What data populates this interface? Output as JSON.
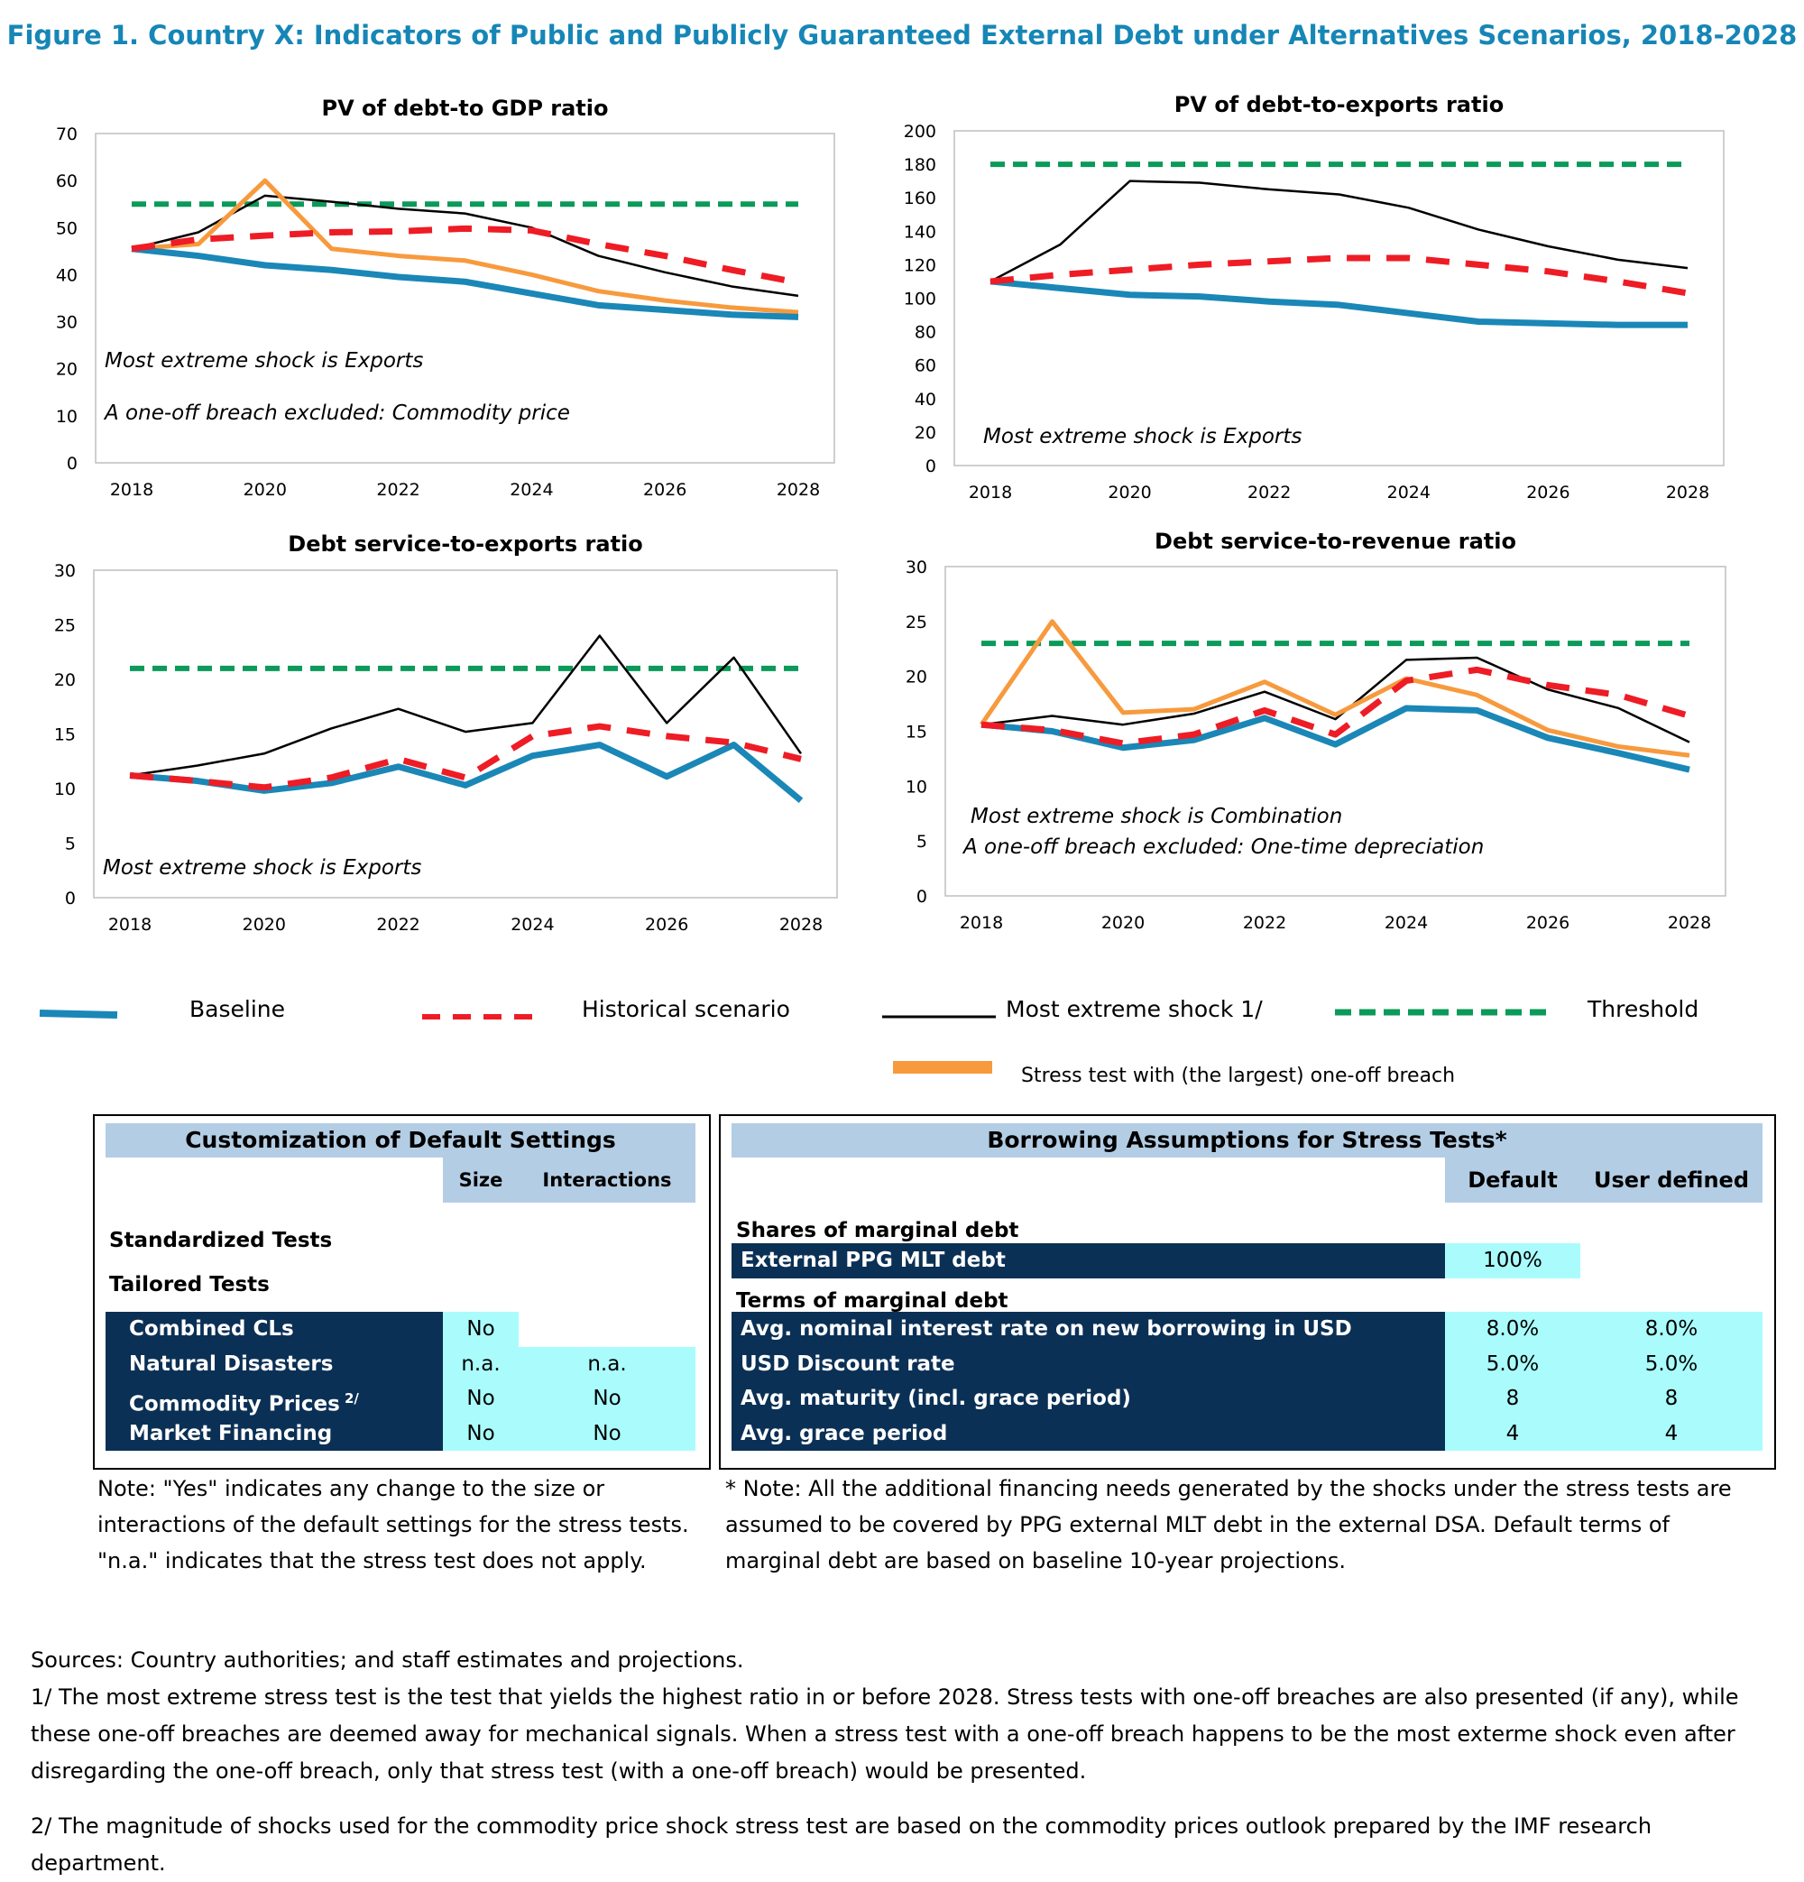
{
  "figure_title": "Figure 1. Country X: Indicators of Public and Publicly Guaranteed External Debt under Alternatives Scenarios, 2018-2028",
  "chart_data": [
    {
      "type": "line",
      "title": "PV of debt-to GDP ratio",
      "x": [
        2018,
        2019,
        2020,
        2021,
        2022,
        2023,
        2024,
        2025,
        2026,
        2027,
        2028
      ],
      "xticks": [
        "2018",
        "2020",
        "2022",
        "2024",
        "2026",
        "2028"
      ],
      "ylim": [
        0,
        70
      ],
      "yticks": [
        0,
        10,
        20,
        30,
        40,
        50,
        60,
        70
      ],
      "series": [
        {
          "name": "Baseline",
          "values": [
            45.5,
            44,
            42,
            41,
            39.5,
            38.5,
            36,
            33.5,
            32.5,
            31.5,
            31
          ]
        },
        {
          "name": "Historical scenario",
          "values": [
            45.5,
            47.5,
            48.3,
            49,
            49.2,
            49.8,
            49.4,
            46.5,
            44,
            41,
            38.3
          ]
        },
        {
          "name": "Most extreme shock 1/",
          "values": [
            45.5,
            49,
            56.8,
            55.5,
            54,
            53,
            50,
            44,
            40.5,
            37.5,
            35.5
          ]
        },
        {
          "name": "Threshold",
          "values": [
            55,
            55,
            55,
            55,
            55,
            55,
            55,
            55,
            55,
            55,
            55
          ]
        },
        {
          "name": "Stress test with (the largest) one-off breach",
          "values": [
            45.5,
            46.5,
            60,
            45.5,
            44,
            43,
            40,
            36.5,
            34.5,
            33,
            32
          ]
        }
      ],
      "annotations": [
        "Most extreme shock is Exports",
        "A one-off breach excluded: Commodity price"
      ]
    },
    {
      "type": "line",
      "title": "PV of debt-to-exports ratio",
      "x": [
        2018,
        2019,
        2020,
        2021,
        2022,
        2023,
        2024,
        2025,
        2026,
        2027,
        2028
      ],
      "xticks": [
        "2018",
        "2020",
        "2022",
        "2024",
        "2026",
        "2028"
      ],
      "ylim": [
        0,
        200
      ],
      "yticks": [
        0,
        20,
        40,
        60,
        80,
        100,
        120,
        140,
        160,
        180,
        200
      ],
      "series": [
        {
          "name": "Baseline",
          "values": [
            110,
            106,
            102,
            101,
            98,
            96,
            91,
            86,
            85,
            84,
            84
          ]
        },
        {
          "name": "Historical scenario",
          "values": [
            110,
            114,
            117,
            120,
            122,
            124,
            124,
            120,
            116,
            110,
            103
          ]
        },
        {
          "name": "Most extreme shock 1/",
          "values": [
            110,
            132,
            170,
            169,
            165,
            162,
            154,
            141,
            131,
            123,
            118
          ]
        },
        {
          "name": "Threshold",
          "values": [
            180,
            180,
            180,
            180,
            180,
            180,
            180,
            180,
            180,
            180,
            180
          ]
        }
      ],
      "annotations": [
        "Most extreme shock is Exports"
      ]
    },
    {
      "type": "line",
      "title": "Debt service-to-exports ratio",
      "x": [
        2018,
        2019,
        2020,
        2021,
        2022,
        2023,
        2024,
        2025,
        2026,
        2027,
        2028
      ],
      "xticks": [
        "2018",
        "2020",
        "2022",
        "2024",
        "2026",
        "2028"
      ],
      "ylim": [
        0,
        30
      ],
      "yticks": [
        0,
        5,
        10,
        15,
        20,
        25,
        30
      ],
      "series": [
        {
          "name": "Baseline",
          "values": [
            11.2,
            10.7,
            9.8,
            10.5,
            12,
            10.3,
            13,
            14,
            11.1,
            14,
            8.9
          ]
        },
        {
          "name": "Historical scenario",
          "values": [
            11.2,
            10.7,
            10.1,
            11,
            12.7,
            11,
            14.8,
            15.7,
            14.8,
            14.2,
            12.7
          ]
        },
        {
          "name": "Most extreme shock 1/",
          "values": [
            11.2,
            12.1,
            13.2,
            15.5,
            17.3,
            15.2,
            16,
            24,
            16,
            22,
            13.2
          ]
        },
        {
          "name": "Threshold",
          "values": [
            21,
            21,
            21,
            21,
            21,
            21,
            21,
            21,
            21,
            21,
            21
          ]
        }
      ],
      "annotations": [
        "Most extreme shock is Exports"
      ]
    },
    {
      "type": "line",
      "title": "Debt service-to-revenue ratio",
      "x": [
        2018,
        2019,
        2020,
        2021,
        2022,
        2023,
        2024,
        2025,
        2026,
        2027,
        2028
      ],
      "xticks": [
        "2018",
        "2020",
        "2022",
        "2024",
        "2026",
        "2028"
      ],
      "ylim": [
        0,
        30
      ],
      "yticks": [
        0,
        5,
        10,
        15,
        20,
        25,
        30
      ],
      "series": [
        {
          "name": "Baseline",
          "values": [
            15.6,
            15,
            13.5,
            14.2,
            16.2,
            13.8,
            17.1,
            16.9,
            14.4,
            13,
            11.5
          ]
        },
        {
          "name": "Historical scenario",
          "values": [
            15.6,
            15.1,
            13.9,
            14.7,
            16.9,
            14.7,
            19.6,
            20.6,
            19.2,
            18.3,
            16.4
          ]
        },
        {
          "name": "Most extreme shock 1/",
          "values": [
            15.6,
            16.4,
            15.6,
            16.6,
            18.6,
            16.1,
            21.5,
            21.7,
            18.8,
            17.1,
            14
          ]
        },
        {
          "name": "Threshold",
          "values": [
            23,
            23,
            23,
            23,
            23,
            23,
            23,
            23,
            23,
            23,
            23
          ]
        },
        {
          "name": "Stress test with (the largest) one-off breach",
          "values": [
            15.6,
            25,
            16.7,
            17,
            19.5,
            16.5,
            19.8,
            18.3,
            15.1,
            13.6,
            12.8
          ]
        }
      ],
      "annotations": [
        "Most extreme shock is Combination",
        "A one-off breach excluded: One-time depreciation"
      ]
    }
  ],
  "colors": {
    "baseline": "#1a87b7",
    "historical": "#ee1c25",
    "extreme": "#000000",
    "threshold": "#0b9a59",
    "oneoff": "#f79a3e",
    "title": "#1686b6",
    "header_bg": "#b3cde4",
    "dark_bg": "#0b3056",
    "cyan_bg": "#aafcfc"
  },
  "legend": {
    "baseline": "Baseline",
    "historical": "Historical scenario",
    "extreme": "Most extreme shock 1/",
    "threshold": "Threshold",
    "oneoff": "Stress test with (the largest) one-off breach"
  },
  "custom_table": {
    "title": "Customization of Default Settings",
    "col_size": "Size",
    "col_interactions": "Interactions",
    "standardized": "Standardized Tests",
    "tailored": "Tailored Tests",
    "rows": [
      {
        "label": "Combined CLs",
        "size": "No",
        "interactions": ""
      },
      {
        "label": "Natural Disasters",
        "size": "n.a.",
        "interactions": "n.a."
      },
      {
        "label": "Commodity Prices",
        "sup": "2/",
        "size": "No",
        "interactions": "No"
      },
      {
        "label": "Market Financing",
        "size": "No",
        "interactions": "No"
      }
    ],
    "note": "Note: \"Yes\" indicates any change to the size or interactions of the default settings for the stress tests. \"n.a.\" indicates that the stress test does not apply."
  },
  "borrow_table": {
    "title": "Borrowing Assumptions for Stress Tests*",
    "col_default": "Default",
    "col_user": "User defined",
    "shares_label": "Shares of marginal debt",
    "shares_row": {
      "label": "External PPG MLT debt",
      "default": "100%"
    },
    "terms_label": "Terms of marginal debt",
    "rows": [
      {
        "label": "Avg. nominal interest rate on new borrowing in USD",
        "default": "8.0%",
        "user": "8.0%"
      },
      {
        "label": "USD Discount rate",
        "default": "5.0%",
        "user": "5.0%"
      },
      {
        "label": "Avg. maturity (incl. grace period)",
        "default": "8",
        "user": "8"
      },
      {
        "label": "Avg. grace period",
        "default": "4",
        "user": "4"
      }
    ],
    "note": "* Note: All the additional financing needs generated by the shocks under the stress tests are assumed to be covered by PPG external MLT debt in the external DSA. Default terms of marginal debt are based on baseline 10-year projections."
  },
  "footer": {
    "sources": "Sources: Country authorities; and staff estimates and projections.",
    "note1": "1/ The most extreme stress test is the test that yields the highest ratio in or before 2028. Stress tests with one-off breaches are also presented (if any), while these one-off breaches are deemed away for mechanical signals. When a stress test with a one-off breach happens to be the most exterme shock even after disregarding the one-off breach, only that stress test (with a one-off breach) would be presented.",
    "note2": "2/ The magnitude of shocks used for the commodity price shock stress test are based on the commodity prices outlook prepared by the IMF research department."
  }
}
